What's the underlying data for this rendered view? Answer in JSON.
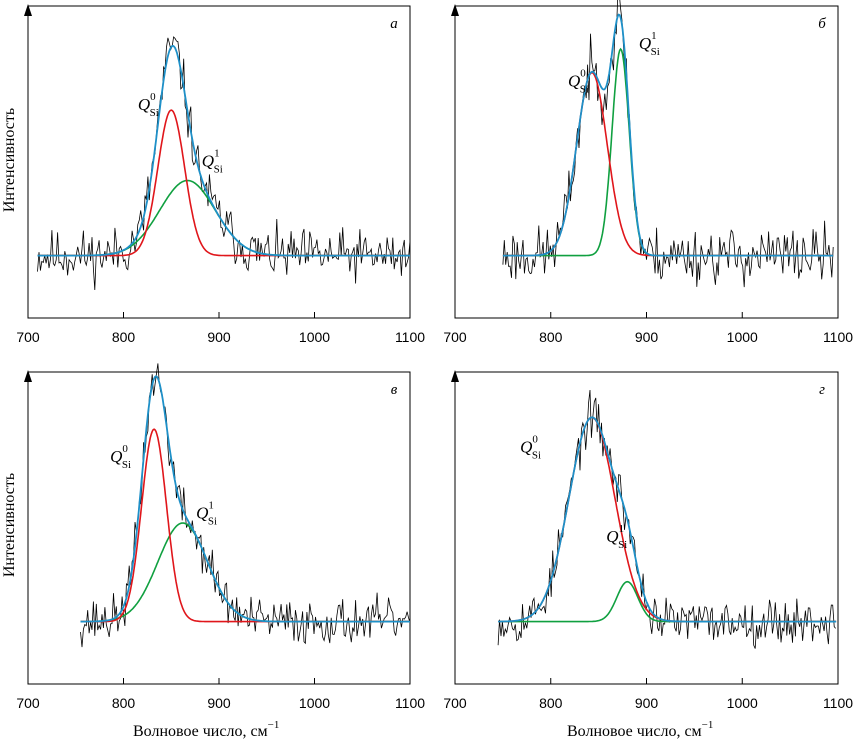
{
  "figure": {
    "ylabel": "Интенсивность",
    "xlabel": "Волновое число, см",
    "xlabel_sup": "−1",
    "colors": {
      "raw": "#000000",
      "fit": "#1e90c8",
      "q0": "#e0161b",
      "q1": "#10a040"
    }
  },
  "chart_data": [
    {
      "type": "line",
      "label": "а",
      "xlim": [
        700,
        1100
      ],
      "xticks": [
        "700",
        "800",
        "900",
        "1000",
        "1100"
      ],
      "x_start": 710,
      "x_end": 1100,
      "noise_seed": 11,
      "noise_amp": 0.09,
      "annotations": [
        {
          "base": "Q",
          "sub": "Si",
          "sup": "0",
          "x": 815,
          "y": 0.62
        },
        {
          "base": "Q",
          "sub": "Si",
          "sup": "1",
          "x": 882,
          "y": 0.38
        }
      ],
      "series": [
        {
          "name": "Q0",
          "component": "q0",
          "center": 850,
          "amplitude": 0.62,
          "sigma": 14
        },
        {
          "name": "Q1",
          "component": "q1",
          "center": 867,
          "amplitude": 0.32,
          "sigma": 29
        }
      ]
    },
    {
      "type": "line",
      "label": "б",
      "xlim": [
        700,
        1100
      ],
      "xticks": [
        "700",
        "800",
        "900",
        "1000",
        "1100"
      ],
      "x_start": 750,
      "x_end": 1095,
      "noise_seed": 23,
      "noise_amp": 0.1,
      "annotations": [
        {
          "base": "Q",
          "sub": "Si",
          "sup": "0",
          "x": 818,
          "y": 0.72
        },
        {
          "base": "Q",
          "sub": "Si",
          "sup": "1",
          "x": 892,
          "y": 0.88
        }
      ],
      "series": [
        {
          "name": "Q0",
          "component": "q0",
          "center": 843,
          "amplitude": 0.78,
          "sigma": 16
        },
        {
          "name": "Q1",
          "component": "q1",
          "center": 873,
          "amplitude": 0.88,
          "sigma": 9
        }
      ]
    },
    {
      "type": "line",
      "label": "в",
      "xlim": [
        700,
        1100
      ],
      "xticks": [
        "700",
        "800",
        "900",
        "1000",
        "1100"
      ],
      "x_start": 755,
      "x_end": 1100,
      "noise_seed": 37,
      "noise_amp": 0.08,
      "annotations": [
        {
          "base": "Q",
          "sub": "Si",
          "sup": "0",
          "x": 786,
          "y": 0.68
        },
        {
          "base": "Q",
          "sub": "Si",
          "sup": "1",
          "x": 876,
          "y": 0.44
        }
      ],
      "series": [
        {
          "name": "Q0",
          "component": "q0",
          "center": 832,
          "amplitude": 0.82,
          "sigma": 13
        },
        {
          "name": "Q1",
          "component": "q1",
          "center": 862,
          "amplitude": 0.42,
          "sigma": 26
        }
      ]
    },
    {
      "type": "line",
      "label": "г",
      "xlim": [
        700,
        1100
      ],
      "xticks": [
        "700",
        "800",
        "900",
        "1000",
        "1100"
      ],
      "x_start": 745,
      "x_end": 1098,
      "noise_seed": 53,
      "noise_amp": 0.08,
      "annotations": [
        {
          "base": "Q",
          "sub": "Si",
          "sup": "0",
          "x": 768,
          "y": 0.72
        },
        {
          "base": "Q",
          "sub": "Si",
          "sup": "1",
          "x": 858,
          "y": 0.34
        }
      ],
      "series": [
        {
          "name": "Q0",
          "component": "q0",
          "center": 843,
          "amplitude": 0.87,
          "sigma": 24
        },
        {
          "name": "Q1",
          "component": "q1",
          "center": 880,
          "amplitude": 0.17,
          "sigma": 11
        }
      ]
    }
  ]
}
